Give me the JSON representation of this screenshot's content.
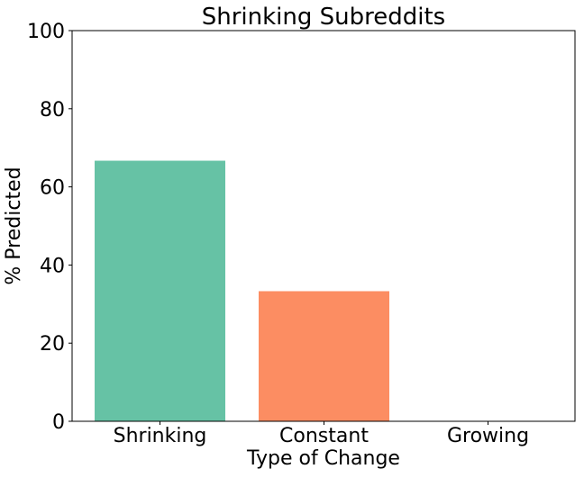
{
  "chart_data": {
    "type": "bar",
    "title": "Shrinking Subreddits",
    "xlabel": "Type of Change",
    "ylabel": "% Predicted",
    "categories": [
      "Shrinking",
      "Constant",
      "Growing"
    ],
    "values": [
      66.7,
      33.3,
      0
    ],
    "colors": [
      "#66c2a5",
      "#fc8d62",
      "#8da0cb"
    ],
    "ylim": [
      0,
      100
    ],
    "yticks": [
      "0",
      "20",
      "40",
      "60",
      "80",
      "100"
    ],
    "grid": false,
    "legend": "none"
  }
}
